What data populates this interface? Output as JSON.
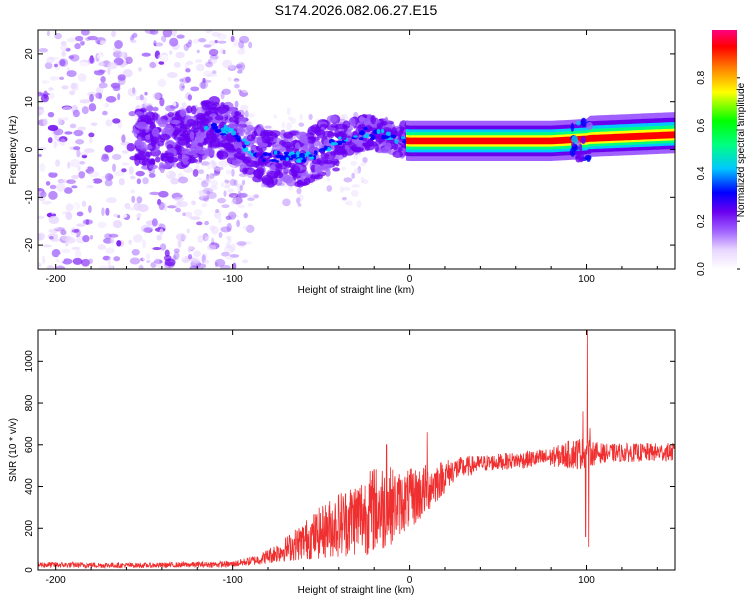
{
  "figure_title": "S174.2026.082.06.27.E15",
  "chart_data": [
    {
      "type": "heatmap",
      "title": "S174.2026.082.06.27.E15",
      "xlabel": "Height of straight line (km)",
      "ylabel": "Frequency (Hz)",
      "xlim": [
        -210,
        150
      ],
      "ylim": [
        -25,
        25
      ],
      "xticks": [
        -200,
        -100,
        0,
        100
      ],
      "yticks": [
        -20,
        -10,
        0,
        10,
        20
      ],
      "colorbar": {
        "label": "Normalized spectral amplitude",
        "range": [
          0,
          1
        ],
        "ticks": [
          0.0,
          0.2,
          0.4,
          0.6,
          0.8
        ],
        "colormap": [
          "#ffffff",
          "#e8d6ff",
          "#a060ff",
          "#6a00f0",
          "#0000ff",
          "#00c8ff",
          "#00ff80",
          "#00ff00",
          "#ffff00",
          "#ff8000",
          "#ff0000",
          "#ff0080"
        ]
      },
      "features": {
        "noise_region_x": [
          -210,
          -120
        ],
        "noise_freq_range": [
          -25,
          25
        ],
        "track": [
          {
            "x": -150,
            "f": 1.5
          },
          {
            "x": -130,
            "f": 2
          },
          {
            "x": -110,
            "f": 5
          },
          {
            "x": -100,
            "f": 3
          },
          {
            "x": -90,
            "f": 0
          },
          {
            "x": -80,
            "f": -2
          },
          {
            "x": -70,
            "f": -1
          },
          {
            "x": -60,
            "f": -2
          },
          {
            "x": -50,
            "f": 0
          },
          {
            "x": -35,
            "f": 2.5
          },
          {
            "x": -25,
            "f": 3.5
          },
          {
            "x": -15,
            "f": 3
          },
          {
            "x": -5,
            "f": 2
          },
          {
            "x": 0,
            "f": 1.8
          },
          {
            "x": 20,
            "f": 1.8
          },
          {
            "x": 80,
            "f": 1.8
          },
          {
            "x": 100,
            "f": 2.2
          },
          {
            "x": 150,
            "f": 3
          }
        ],
        "strong_band_x": [
          0,
          150
        ],
        "strong_band_f": 1.8
      }
    },
    {
      "type": "line",
      "title": "",
      "xlabel": "Height of straight line (km)",
      "ylabel": "SNR (10 * v/v)",
      "xlim": [
        -210,
        150
      ],
      "ylim": [
        0,
        1150
      ],
      "xticks": [
        -200,
        -100,
        0,
        100
      ],
      "yticks": [
        0,
        200,
        400,
        600,
        800,
        1000
      ],
      "color": "#f03030",
      "series": [
        {
          "name": "SNR",
          "envelope": [
            {
              "x": -210,
              "mean": 25,
              "noise": 15
            },
            {
              "x": -150,
              "mean": 22,
              "noise": 12
            },
            {
              "x": -100,
              "mean": 28,
              "noise": 15
            },
            {
              "x": -85,
              "mean": 50,
              "noise": 25
            },
            {
              "x": -70,
              "mean": 100,
              "noise": 60
            },
            {
              "x": -55,
              "mean": 160,
              "noise": 110
            },
            {
              "x": -40,
              "mean": 220,
              "noise": 160
            },
            {
              "x": -25,
              "mean": 270,
              "noise": 200
            },
            {
              "x": -15,
              "mean": 300,
              "noise": 220
            },
            {
              "x": -5,
              "mean": 320,
              "noise": 150
            },
            {
              "x": 5,
              "mean": 360,
              "noise": 140
            },
            {
              "x": 15,
              "mean": 420,
              "noise": 100
            },
            {
              "x": 25,
              "mean": 480,
              "noise": 60
            },
            {
              "x": 40,
              "mean": 510,
              "noise": 40
            },
            {
              "x": 60,
              "mean": 525,
              "noise": 40
            },
            {
              "x": 80,
              "mean": 540,
              "noise": 45
            },
            {
              "x": 95,
              "mean": 560,
              "noise": 80
            },
            {
              "x": 110,
              "mean": 560,
              "noise": 45
            },
            {
              "x": 150,
              "mean": 565,
              "noise": 45
            }
          ],
          "spikes": [
            {
              "x": 98,
              "y": 760
            },
            {
              "x": 99.5,
              "y": 160
            },
            {
              "x": 100.5,
              "y": 1150
            },
            {
              "x": 101.2,
              "y": 110
            },
            {
              "x": 102,
              "y": 680
            },
            {
              "x": -13,
              "y": 600
            },
            {
              "x": 10,
              "y": 660
            },
            {
              "x": -20,
              "y": 480
            }
          ]
        }
      ]
    }
  ]
}
